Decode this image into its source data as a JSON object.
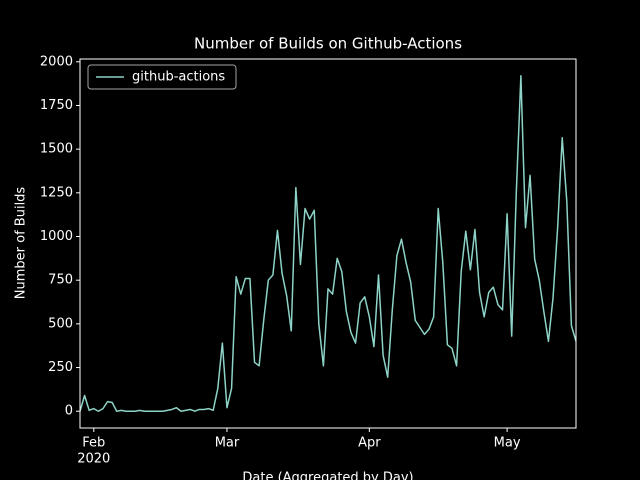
{
  "chart_data": {
    "type": "line",
    "title": "Number of Builds on Github-Actions",
    "x_label": "Date (Aggregated by Day)",
    "y_label": "Number of Builds",
    "x": [
      "2020-01-29",
      "2020-01-30",
      "2020-01-31",
      "2020-02-01",
      "2020-02-02",
      "2020-02-03",
      "2020-02-04",
      "2020-02-05",
      "2020-02-06",
      "2020-02-07",
      "2020-02-08",
      "2020-02-09",
      "2020-02-10",
      "2020-02-11",
      "2020-02-12",
      "2020-02-13",
      "2020-02-14",
      "2020-02-15",
      "2020-02-16",
      "2020-02-17",
      "2020-02-18",
      "2020-02-19",
      "2020-02-20",
      "2020-02-21",
      "2020-02-22",
      "2020-02-23",
      "2020-02-24",
      "2020-02-25",
      "2020-02-26",
      "2020-02-27",
      "2020-02-28",
      "2020-02-29",
      "2020-03-01",
      "2020-03-02",
      "2020-03-03",
      "2020-03-04",
      "2020-03-05",
      "2020-03-06",
      "2020-03-07",
      "2020-03-08",
      "2020-03-09",
      "2020-03-10",
      "2020-03-11",
      "2020-03-12",
      "2020-03-13",
      "2020-03-14",
      "2020-03-15",
      "2020-03-16",
      "2020-03-17",
      "2020-03-18",
      "2020-03-19",
      "2020-03-20",
      "2020-03-21",
      "2020-03-22",
      "2020-03-23",
      "2020-03-24",
      "2020-03-25",
      "2020-03-26",
      "2020-03-27",
      "2020-03-28",
      "2020-03-29",
      "2020-03-30",
      "2020-03-31",
      "2020-04-01",
      "2020-04-02",
      "2020-04-03",
      "2020-04-04",
      "2020-04-05",
      "2020-04-06",
      "2020-04-07",
      "2020-04-08",
      "2020-04-09",
      "2020-04-10",
      "2020-04-11",
      "2020-04-12",
      "2020-04-13",
      "2020-04-14",
      "2020-04-15",
      "2020-04-16",
      "2020-04-17",
      "2020-04-18",
      "2020-04-19",
      "2020-04-20",
      "2020-04-21",
      "2020-04-22",
      "2020-04-23",
      "2020-04-24",
      "2020-04-25",
      "2020-04-26",
      "2020-04-27",
      "2020-04-28",
      "2020-04-29",
      "2020-04-30",
      "2020-05-01",
      "2020-05-02",
      "2020-05-03",
      "2020-05-04",
      "2020-05-05",
      "2020-05-06",
      "2020-05-07",
      "2020-05-08",
      "2020-05-09",
      "2020-05-10",
      "2020-05-11",
      "2020-05-12",
      "2020-05-13",
      "2020-05-14",
      "2020-05-15",
      "2020-05-16"
    ],
    "series": [
      {
        "name": "github-actions",
        "color": "#8dd3c7",
        "values": [
          0,
          90,
          5,
          15,
          0,
          15,
          55,
          50,
          0,
          5,
          0,
          0,
          0,
          5,
          0,
          0,
          0,
          0,
          0,
          5,
          10,
          20,
          0,
          5,
          10,
          0,
          10,
          10,
          15,
          5,
          130,
          390,
          20,
          130,
          770,
          670,
          760,
          760,
          280,
          260,
          520,
          750,
          780,
          1035,
          790,
          660,
          460,
          1280,
          840,
          1160,
          1100,
          1150,
          500,
          260,
          700,
          670,
          875,
          800,
          570,
          450,
          390,
          620,
          655,
          540,
          370,
          780,
          320,
          195,
          580,
          890,
          985,
          850,
          740,
          520,
          480,
          440,
          470,
          540,
          1160,
          850,
          380,
          360,
          260,
          800,
          1030,
          810,
          1040,
          680,
          540,
          680,
          710,
          610,
          580,
          1130,
          430,
          1250,
          1920,
          1050,
          1350,
          870,
          750,
          570,
          400,
          650,
          1050,
          1565,
          1200,
          490,
          400
        ]
      }
    ],
    "xlim": [
      "2020-01-29",
      "2020-05-16"
    ],
    "xticks": [
      {
        "value": "2020-02-01",
        "label": "Feb"
      },
      {
        "value": "2020-03-01",
        "label": "Mar"
      },
      {
        "value": "2020-04-01",
        "label": "Apr"
      },
      {
        "value": "2020-05-01",
        "label": "May"
      }
    ],
    "xtick_offset": "2020",
    "ylim": [
      -96,
      2016
    ],
    "yticks": [
      0,
      250,
      500,
      750,
      1000,
      1250,
      1500,
      1750,
      2000
    ],
    "legend": "upper left"
  }
}
